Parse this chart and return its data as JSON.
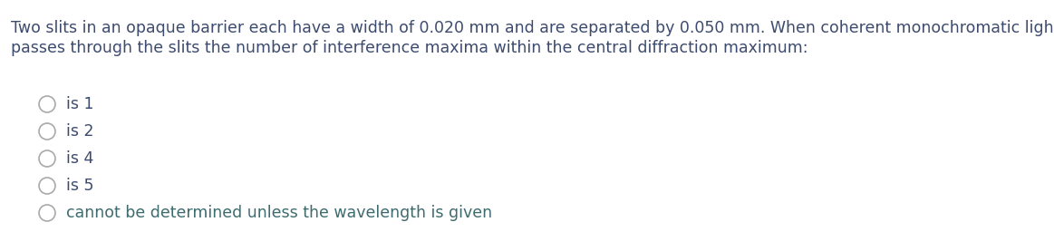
{
  "question_line1": "Two slits in an opaque barrier each have a width of 0.020 mm and are separated by 0.050 mm. When coherent monochromatic light",
  "question_line2": "passes through the slits the number of interference maxima within the central diffraction maximum:",
  "options": [
    {
      "text": "is 1",
      "color": "#3d4b6e"
    },
    {
      "text": "is 2",
      "color": "#3d4b6e"
    },
    {
      "text": "is 4",
      "color": "#3d4b6e"
    },
    {
      "text": "is 5",
      "color": "#3d4b6e"
    },
    {
      "text": "cannot be determined unless the wavelength is given",
      "color": "#3d6b6e"
    }
  ],
  "question_color": "#3d4b6e",
  "circle_edge_color": "#aaaaaa",
  "background_color": "#ffffff",
  "question_fontsize": 12.5,
  "option_fontsize": 12.5,
  "fig_width": 11.63,
  "fig_height": 2.77,
  "dpi": 100
}
